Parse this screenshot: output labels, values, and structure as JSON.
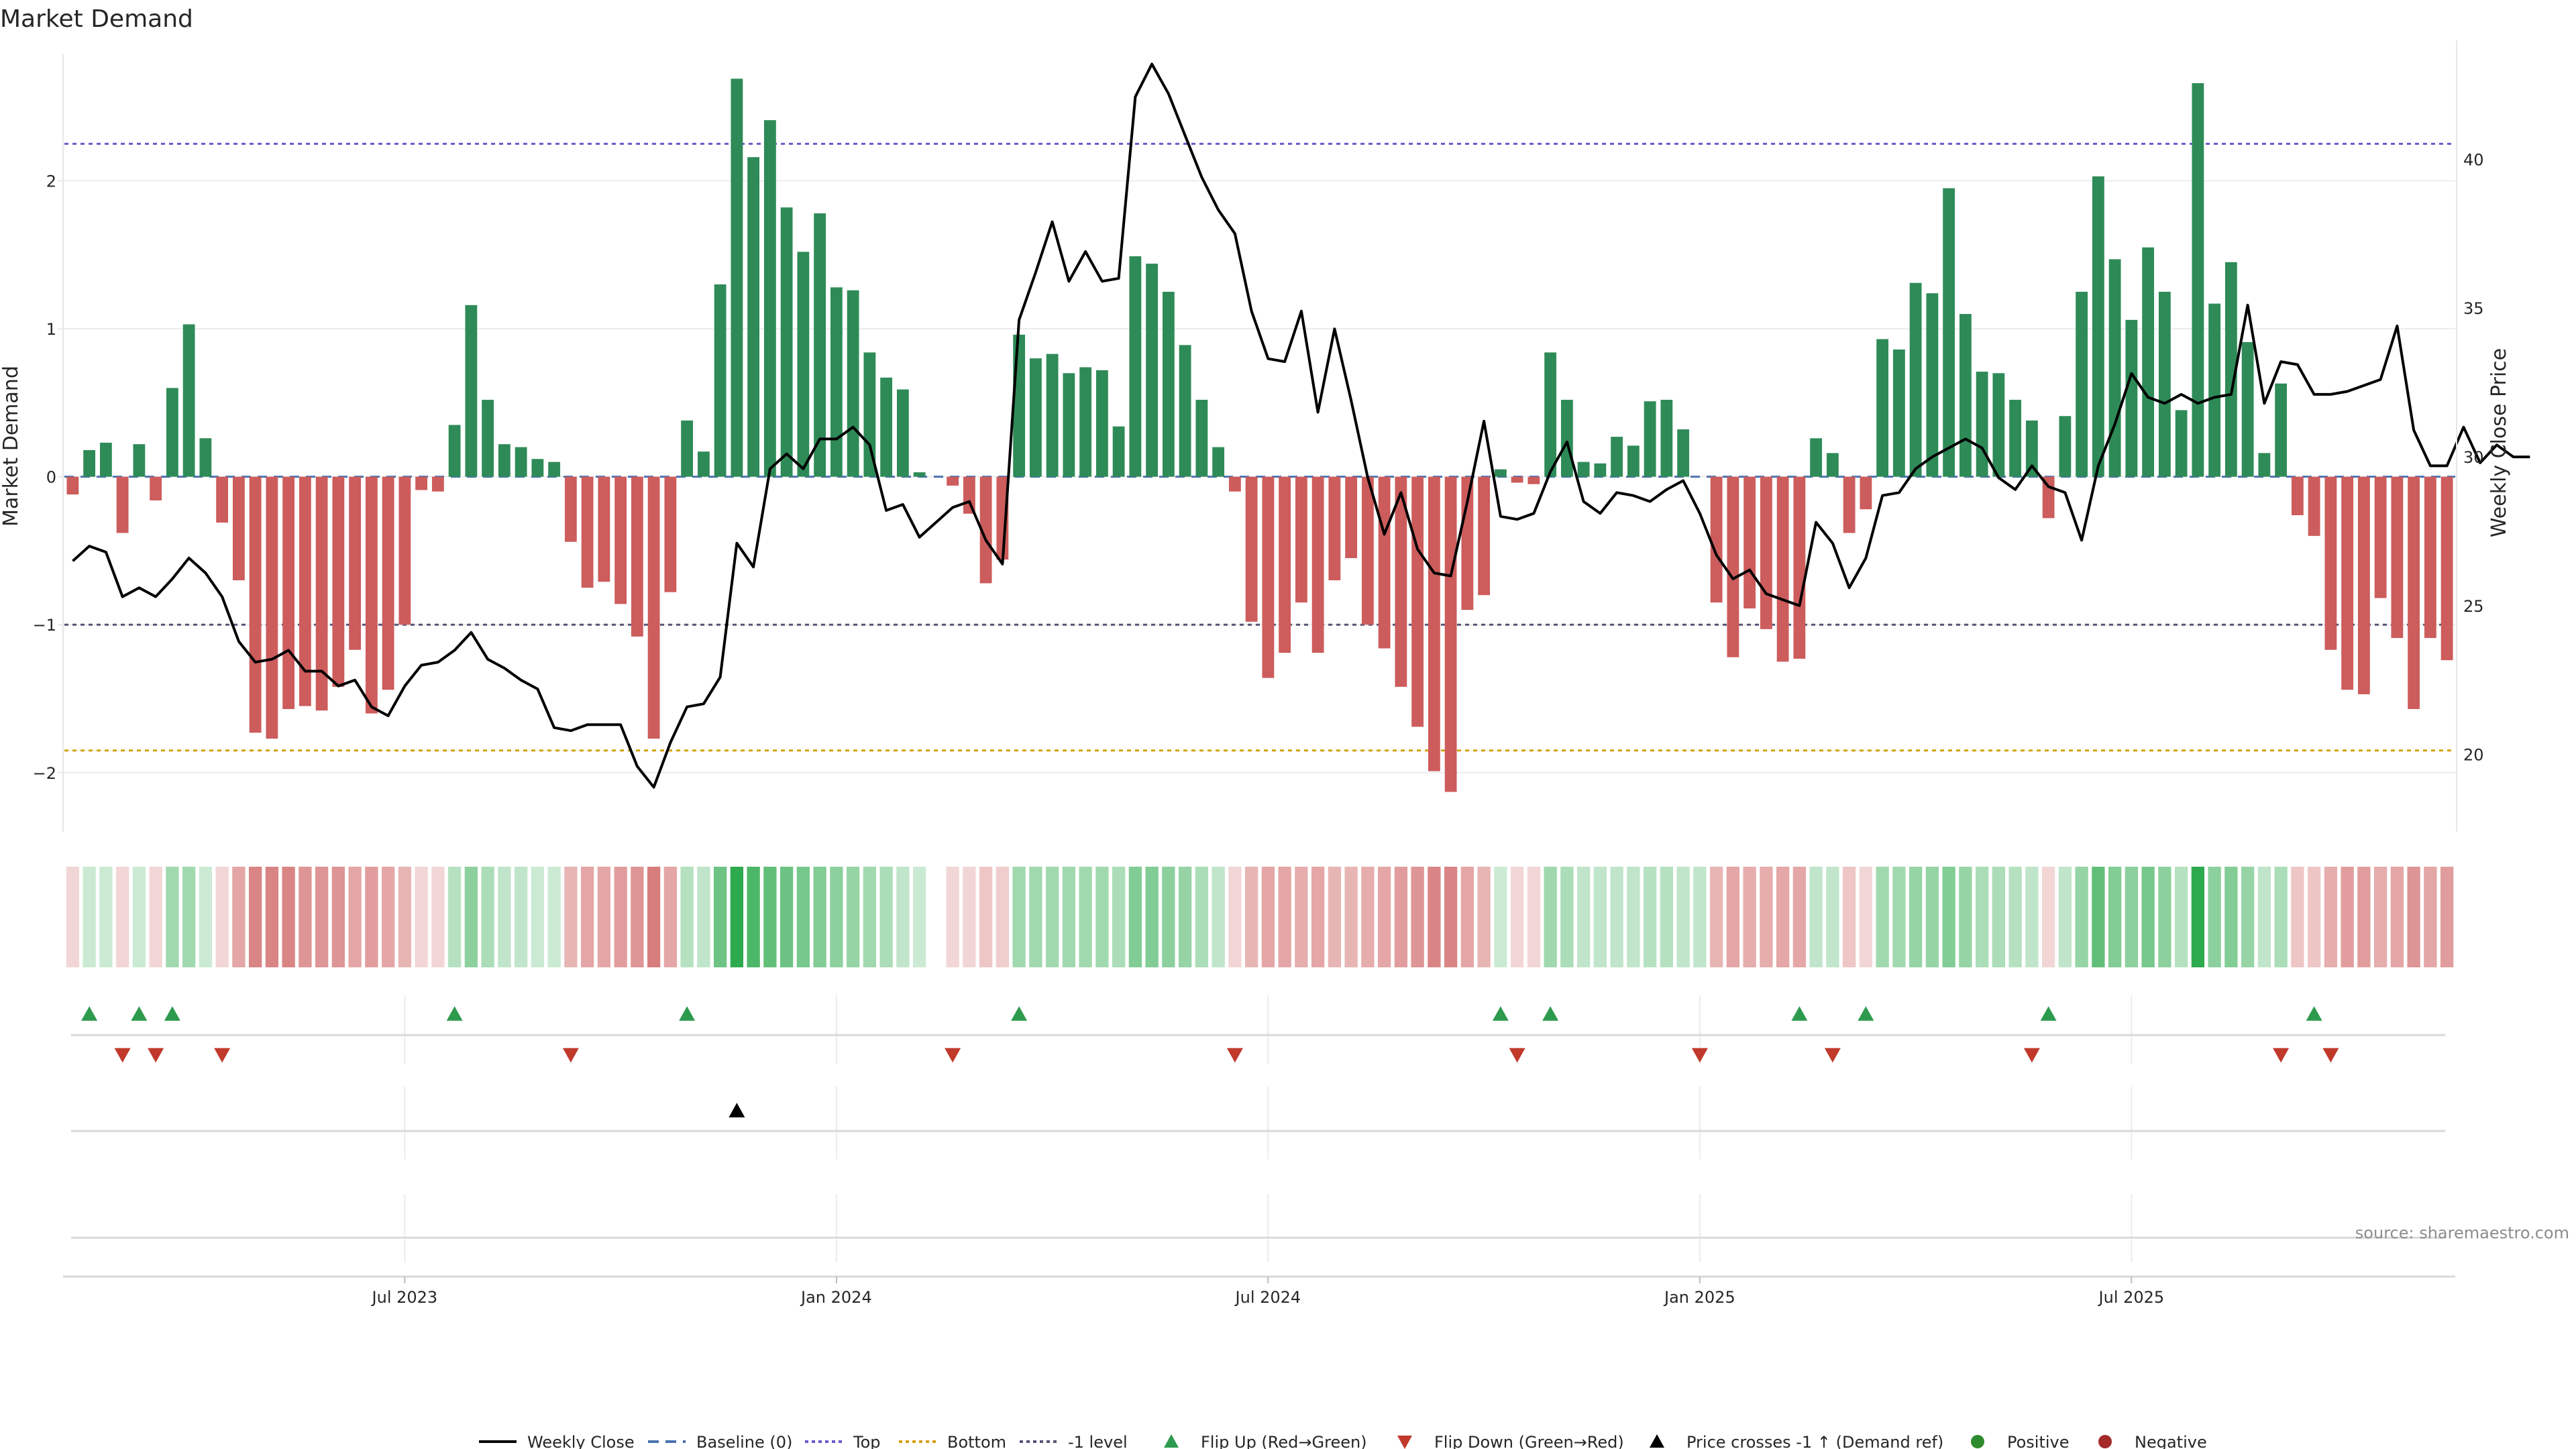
{
  "chart_data": {
    "type": "bar",
    "title": "Market Demand",
    "ylabel": "Market Demand",
    "y2label": "Weekly Close Price",
    "ylim": [
      -2.4,
      2.95
    ],
    "y2lim": [
      17.4,
      44.0
    ],
    "yticks": [
      2,
      1,
      0,
      -1,
      -2
    ],
    "ytick_labels": [
      "2",
      "1",
      "0",
      "−1",
      "−2"
    ],
    "y2ticks": [
      40,
      35,
      30,
      25,
      20
    ],
    "y2tick_labels": [
      "40",
      "35",
      "30",
      "25",
      "20"
    ],
    "xticks": [
      {
        "week": 20,
        "label": "Jul 2023"
      },
      {
        "week": 46,
        "label": "Jan 2024"
      },
      {
        "week": 72,
        "label": "Jul 2024"
      },
      {
        "week": 98,
        "label": "Jan 2025"
      },
      {
        "week": 124,
        "label": "Jul 2025"
      }
    ],
    "levels": {
      "top": 2.25,
      "bottom": -1.85,
      "minus_one": -1.0,
      "baseline": 0
    },
    "demand": [
      -0.12,
      0.18,
      0.23,
      -0.38,
      0.22,
      -0.16,
      0.6,
      1.03,
      0.26,
      -0.31,
      -0.7,
      -1.73,
      -1.77,
      -1.57,
      -1.55,
      -1.58,
      -1.42,
      -1.17,
      -1.6,
      -1.44,
      -1.0,
      -0.09,
      -0.1,
      0.35,
      1.16,
      0.52,
      0.22,
      0.2,
      0.12,
      0.1,
      -0.44,
      -0.75,
      -0.71,
      -0.86,
      -1.08,
      -1.77,
      -0.78,
      0.38,
      0.17,
      1.3,
      2.69,
      2.16,
      2.41,
      1.82,
      1.52,
      1.78,
      1.28,
      1.26,
      0.84,
      0.67,
      0.59,
      0.03,
      0.0,
      -0.06,
      -0.25,
      -0.72,
      -0.56,
      0.96,
      0.8,
      0.83,
      0.7,
      0.74,
      0.72,
      0.34,
      1.49,
      1.44,
      1.25,
      0.89,
      0.52,
      0.2,
      -0.1,
      -0.98,
      -1.36,
      -1.19,
      -0.85,
      -1.19,
      -0.7,
      -0.55,
      -1.0,
      -1.16,
      -1.42,
      -1.69,
      -1.99,
      -2.13,
      -0.9,
      -0.8,
      0.05,
      -0.04,
      -0.05,
      0.84,
      0.52,
      0.1,
      0.09,
      0.27,
      0.21,
      0.51,
      0.52,
      0.32,
      0.0,
      -0.85,
      -1.22,
      -0.89,
      -1.03,
      -1.25,
      -1.23,
      0.26,
      0.16,
      -0.38,
      -0.22,
      0.93,
      0.86,
      1.31,
      1.24,
      1.95,
      1.1,
      0.71,
      0.7,
      0.52,
      0.38,
      -0.28,
      0.41,
      1.25,
      2.03,
      1.47,
      1.06,
      1.55,
      1.25,
      0.45,
      2.66,
      1.17,
      1.45,
      0.91,
      0.16,
      0.63,
      -0.26,
      -0.4,
      -1.17,
      -1.44,
      -1.47,
      -0.82,
      -1.09,
      -1.57,
      -1.09,
      -1.24
    ],
    "close": [
      26.5,
      27.0,
      26.8,
      25.3,
      25.6,
      25.3,
      25.9,
      26.6,
      26.1,
      25.3,
      23.8,
      23.1,
      23.2,
      23.5,
      22.8,
      22.8,
      22.3,
      22.5,
      21.6,
      21.3,
      22.3,
      23.0,
      23.1,
      23.5,
      24.1,
      23.2,
      22.9,
      22.5,
      22.2,
      20.9,
      20.8,
      21.0,
      21.0,
      21.0,
      19.6,
      18.9,
      20.4,
      21.6,
      21.7,
      22.6,
      27.1,
      26.3,
      29.6,
      30.1,
      29.6,
      30.6,
      30.6,
      31.0,
      30.4,
      28.2,
      28.4,
      27.3,
      27.8,
      28.3,
      28.5,
      27.2,
      26.4,
      34.6,
      36.2,
      37.9,
      35.9,
      36.9,
      35.9,
      36.0,
      42.1,
      43.2,
      42.2,
      40.8,
      39.4,
      38.3,
      37.5,
      34.9,
      33.3,
      33.2,
      34.9,
      31.5,
      34.3,
      31.9,
      29.3,
      27.4,
      28.8,
      26.9,
      26.1,
      26.0,
      28.5,
      31.2,
      28.0,
      27.9,
      28.1,
      29.5,
      30.5,
      28.5,
      28.1,
      28.8,
      28.7,
      28.5,
      28.9,
      29.2,
      28.1,
      26.7,
      25.9,
      26.2,
      25.4,
      25.2,
      25.0,
      27.8,
      27.1,
      25.6,
      26.6,
      28.7,
      28.8,
      29.6,
      30.0,
      30.3,
      30.6,
      30.3,
      29.3,
      28.9,
      29.7,
      29.0,
      28.8,
      27.2,
      29.7,
      31.1,
      32.8,
      32.0,
      31.8,
      32.1,
      31.8,
      32.0,
      32.1,
      35.1,
      31.8,
      33.2,
      33.1,
      32.1,
      32.1,
      32.2,
      32.4,
      32.6,
      34.4,
      30.9,
      29.7,
      29.7,
      31.0,
      29.8,
      30.4,
      30.0,
      30.0
    ],
    "strip_opacity": [
      0.25,
      0.25,
      0.25,
      0.25,
      0.25,
      0.25,
      0.45,
      0.45,
      0.25,
      0.25,
      0.55,
      0.75,
      0.75,
      0.75,
      0.65,
      0.65,
      0.65,
      0.55,
      0.6,
      0.55,
      0.45,
      0.25,
      0.25,
      0.35,
      0.55,
      0.4,
      0.3,
      0.3,
      0.25,
      0.25,
      0.45,
      0.55,
      0.55,
      0.6,
      0.65,
      0.8,
      0.55,
      0.35,
      0.3,
      0.7,
      1.0,
      0.85,
      0.75,
      0.7,
      0.65,
      0.6,
      0.55,
      0.5,
      0.45,
      0.4,
      0.3,
      0.25,
      0.0,
      0.25,
      0.25,
      0.35,
      0.3,
      0.45,
      0.45,
      0.45,
      0.45,
      0.45,
      0.45,
      0.4,
      0.6,
      0.6,
      0.55,
      0.5,
      0.4,
      0.3,
      0.25,
      0.45,
      0.55,
      0.55,
      0.5,
      0.55,
      0.45,
      0.45,
      0.5,
      0.55,
      0.6,
      0.65,
      0.75,
      0.75,
      0.55,
      0.45,
      0.25,
      0.25,
      0.25,
      0.45,
      0.4,
      0.3,
      0.3,
      0.3,
      0.3,
      0.35,
      0.35,
      0.3,
      0.3,
      0.45,
      0.55,
      0.5,
      0.5,
      0.55,
      0.55,
      0.3,
      0.3,
      0.35,
      0.25,
      0.45,
      0.45,
      0.5,
      0.5,
      0.6,
      0.5,
      0.4,
      0.4,
      0.35,
      0.3,
      0.25,
      0.3,
      0.5,
      0.75,
      0.6,
      0.55,
      0.65,
      0.55,
      0.35,
      1.0,
      0.55,
      0.6,
      0.5,
      0.3,
      0.4,
      0.35,
      0.35,
      0.5,
      0.6,
      0.6,
      0.5,
      0.55,
      0.65,
      0.55,
      0.6
    ],
    "flip_up_weeks": [
      1,
      4,
      6,
      23,
      37,
      57,
      86,
      89,
      104,
      108,
      119,
      135
    ],
    "flip_down_weeks": [
      3,
      5,
      9,
      30,
      53,
      70,
      87,
      98,
      106,
      118,
      133,
      136
    ],
    "price_cross_weeks": [
      40
    ],
    "source": "source: sharemaestro.com",
    "legend": [
      {
        "label": "Weekly Close",
        "kind": "line",
        "color": "#000000"
      },
      {
        "label": "Baseline (0)",
        "kind": "dash",
        "color": "#4c72b0"
      },
      {
        "label": "Top",
        "kind": "dot",
        "color": "#6a5acd"
      },
      {
        "label": "Bottom",
        "kind": "dot",
        "color": "#d4a017"
      },
      {
        "label": "-1 level",
        "kind": "dot",
        "color": "#555577"
      },
      {
        "label": "Flip Up (Red→Green)",
        "kind": "tri-up",
        "color": "#2e9a4e"
      },
      {
        "label": "Flip Down (Green→Red)",
        "kind": "tri-down",
        "color": "#c0392b"
      },
      {
        "label": "Price crosses -1 ↑ (Demand ref)",
        "kind": "tri-up",
        "color": "#000000"
      },
      {
        "label": "Positive",
        "kind": "circle",
        "color": "#2e8b2e"
      },
      {
        "label": "Negative",
        "kind": "circle",
        "color": "#a52a2a"
      }
    ],
    "colors": {
      "positive_bar": "#2e8b57",
      "negative_bar": "#cd5c5c",
      "strip_positive": "#2eaa4e",
      "strip_negative": "#cd5c5c",
      "flip_up": "#2e9a4e",
      "flip_down": "#c0392b",
      "price_line": "#000000"
    }
  }
}
